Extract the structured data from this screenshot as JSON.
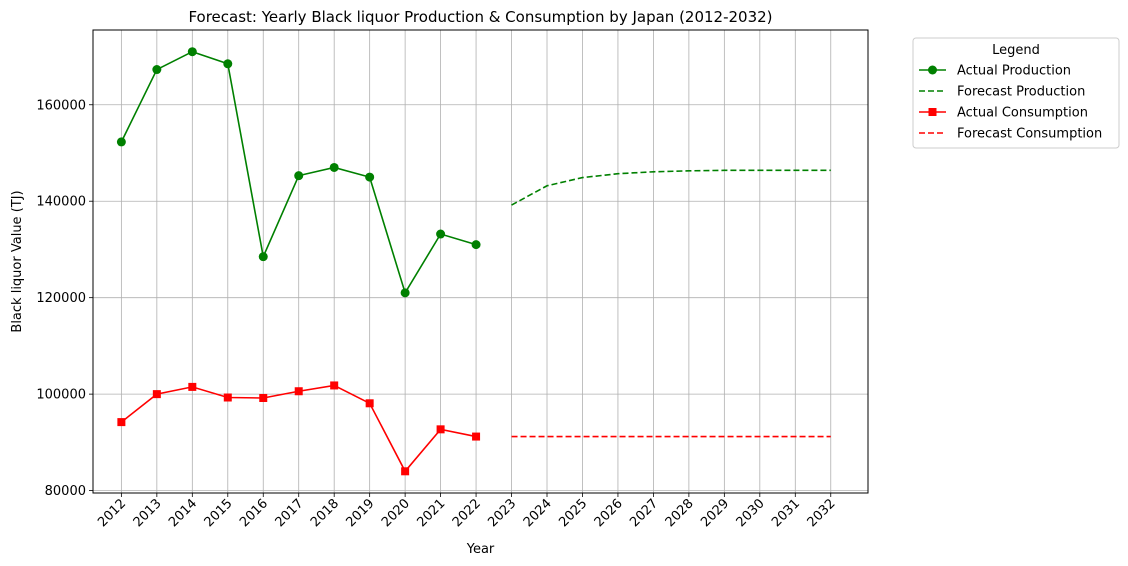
{
  "chart_data": {
    "type": "line",
    "title": "Forecast: Yearly Black liquor Production & Consumption by Japan (2012-2032)",
    "xlabel": "Year",
    "ylabel": "Black liquor Value (TJ)",
    "x_ticks": [
      "2012",
      "2013",
      "2014",
      "2015",
      "2016",
      "2017",
      "2018",
      "2019",
      "2020",
      "2021",
      "2022",
      "2023",
      "2024",
      "2025",
      "2026",
      "2027",
      "2028",
      "2029",
      "2030",
      "2031",
      "2032"
    ],
    "xlim": [
      2011.2,
      2033.05
    ],
    "ylim": [
      79500,
      175500
    ],
    "y_ticks": [
      80000,
      100000,
      120000,
      140000,
      160000
    ],
    "grid": true,
    "legend": {
      "title": "Legend",
      "placement": "outside-right"
    },
    "series": [
      {
        "name": "Actual Production",
        "color": "#008000",
        "style": "solid",
        "marker": "circle",
        "x": [
          2012,
          2013,
          2014,
          2015,
          2016,
          2017,
          2018,
          2019,
          2020,
          2021,
          2022
        ],
        "y": [
          152300,
          167300,
          171000,
          168500,
          128500,
          145300,
          147000,
          145000,
          121000,
          133200,
          131000
        ]
      },
      {
        "name": "Forecast Production",
        "color": "#008000",
        "style": "dashed",
        "marker": "none",
        "x": [
          2023,
          2024,
          2025,
          2026,
          2027,
          2028,
          2029,
          2030,
          2031,
          2032
        ],
        "y": [
          139200,
          143200,
          144900,
          145700,
          146100,
          146300,
          146400,
          146400,
          146400,
          146400
        ]
      },
      {
        "name": "Actual Consumption",
        "color": "#ff0000",
        "style": "solid",
        "marker": "square",
        "x": [
          2012,
          2013,
          2014,
          2015,
          2016,
          2017,
          2018,
          2019,
          2020,
          2021,
          2022
        ],
        "y": [
          94200,
          100000,
          101500,
          99300,
          99200,
          100600,
          101800,
          98100,
          84000,
          92700,
          91200
        ]
      },
      {
        "name": "Forecast Consumption",
        "color": "#ff0000",
        "style": "dashed",
        "marker": "none",
        "x": [
          2023,
          2024,
          2025,
          2026,
          2027,
          2028,
          2029,
          2030,
          2031,
          2032
        ],
        "y": [
          91200,
          91200,
          91200,
          91200,
          91200,
          91200,
          91200,
          91200,
          91200,
          91200
        ]
      }
    ]
  }
}
